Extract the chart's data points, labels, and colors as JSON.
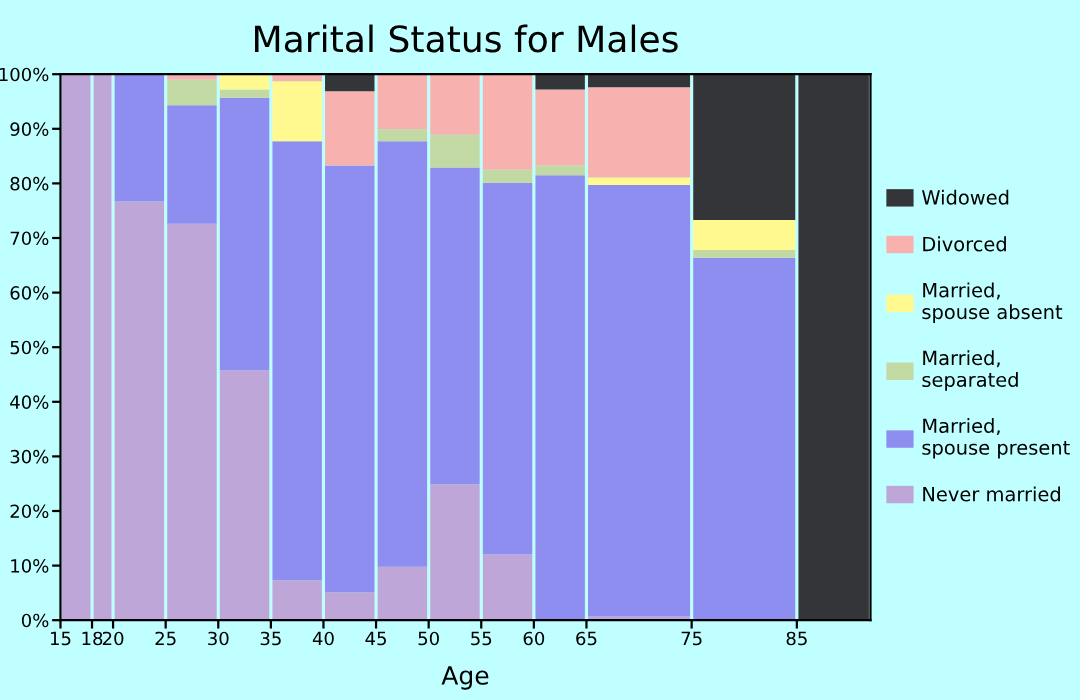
{
  "chart_data": {
    "type": "bar",
    "stacked": true,
    "title": "Marital Status for Males",
    "xlabel": "Age",
    "x": [
      16.5,
      19,
      22.5,
      27.5,
      32.5,
      37.5,
      42.5,
      47.5,
      52.5,
      57.5,
      62.5,
      70,
      80,
      88.5
    ],
    "xlim": [
      15,
      92
    ],
    "xticks": [
      15,
      18,
      20,
      25,
      30,
      35,
      40,
      45,
      50,
      55,
      60,
      65,
      75,
      85
    ],
    "ylim": [
      0,
      100
    ],
    "yticks": [
      {
        "value": 0,
        "label": "0%"
      },
      {
        "value": 10,
        "label": "10%"
      },
      {
        "value": 20,
        "label": "20%"
      },
      {
        "value": 30,
        "label": "30%"
      },
      {
        "value": 40,
        "label": "40%"
      },
      {
        "value": 50,
        "label": "50%"
      },
      {
        "value": 60,
        "label": "60%"
      },
      {
        "value": 70,
        "label": "70%"
      },
      {
        "value": 80,
        "label": "80%"
      },
      {
        "value": 90,
        "label": "90%"
      },
      {
        "value": 100,
        "label": "100%"
      }
    ],
    "grid": false,
    "legend": "right",
    "series": [
      {
        "name": "Never married",
        "color": "#bea6d8",
        "values": [
          100,
          100,
          76.7,
          72.6,
          45.8,
          7.3,
          5.1,
          9.8,
          24.9,
          12.1,
          0,
          0.7,
          0,
          0
        ]
      },
      {
        "name": "Married,\nspouse present",
        "color": "#8e8ef0",
        "values": [
          0,
          0,
          23.3,
          21.7,
          49.9,
          80.4,
          78.2,
          77.9,
          58.0,
          68.0,
          81.5,
          79.0,
          66.4,
          0
        ]
      },
      {
        "name": "Married,\nseparated",
        "color": "#c3d9a3",
        "values": [
          0,
          0,
          0,
          4.7,
          1.5,
          0,
          0,
          2.2,
          6.0,
          2.4,
          1.8,
          0,
          1.4,
          0
        ]
      },
      {
        "name": "Married,\nspouse absent",
        "color": "#fff98f",
        "values": [
          0,
          0,
          0,
          0,
          2.8,
          11.0,
          0,
          0,
          0,
          0,
          0,
          1.4,
          5.5,
          0
        ]
      },
      {
        "name": "Divorced",
        "color": "#f7b2b0",
        "values": [
          0,
          0,
          0,
          1.0,
          0,
          1.3,
          13.6,
          10.1,
          11.1,
          17.5,
          13.9,
          16.5,
          0,
          0
        ]
      },
      {
        "name": "Widowed",
        "color": "#343539",
        "values": [
          0,
          0,
          0,
          0,
          0,
          0,
          3.1,
          0,
          0,
          0,
          2.8,
          2.4,
          26.7,
          100
        ]
      }
    ]
  }
}
